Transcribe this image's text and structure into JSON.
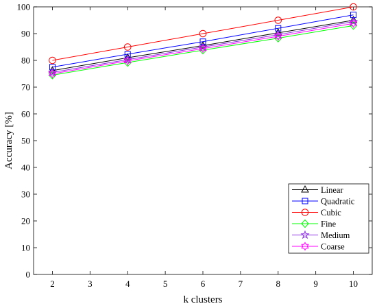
{
  "chart_data": {
    "type": "line",
    "title": "",
    "xlabel": "k clusters",
    "ylabel": "Accuracy [%]",
    "xlim": [
      1.5,
      10.5
    ],
    "ylim": [
      0,
      100
    ],
    "xticks": [
      2,
      3,
      4,
      5,
      6,
      7,
      8,
      9,
      10
    ],
    "yticks": [
      0,
      10,
      20,
      30,
      40,
      50,
      60,
      70,
      80,
      90,
      100
    ],
    "grid": false,
    "legend_position": "bottom-right",
    "x": [
      2,
      4,
      6,
      8,
      10
    ],
    "series": [
      {
        "name": "Linear",
        "color": "#000000",
        "marker": "triangle",
        "values": [
          76.2,
          81.0,
          85.5,
          90.3,
          95.0
        ]
      },
      {
        "name": "Quadratic",
        "color": "#0000ff",
        "marker": "square",
        "values": [
          77.5,
          82.3,
          87.0,
          92.0,
          97.0
        ]
      },
      {
        "name": "Cubic",
        "color": "#ff0000",
        "marker": "circle",
        "values": [
          80.0,
          85.0,
          90.0,
          95.0,
          100.0
        ]
      },
      {
        "name": "Fine",
        "color": "#00ff00",
        "marker": "diamond",
        "values": [
          74.5,
          79.2,
          83.8,
          88.3,
          93.0
        ]
      },
      {
        "name": "Medium",
        "color": "#8b2be2",
        "marker": "star",
        "values": [
          75.5,
          80.3,
          85.0,
          89.6,
          94.5
        ]
      },
      {
        "name": "Coarse",
        "color": "#ff00ff",
        "marker": "hexagram",
        "values": [
          75.0,
          79.8,
          84.4,
          89.0,
          93.8
        ]
      }
    ]
  }
}
